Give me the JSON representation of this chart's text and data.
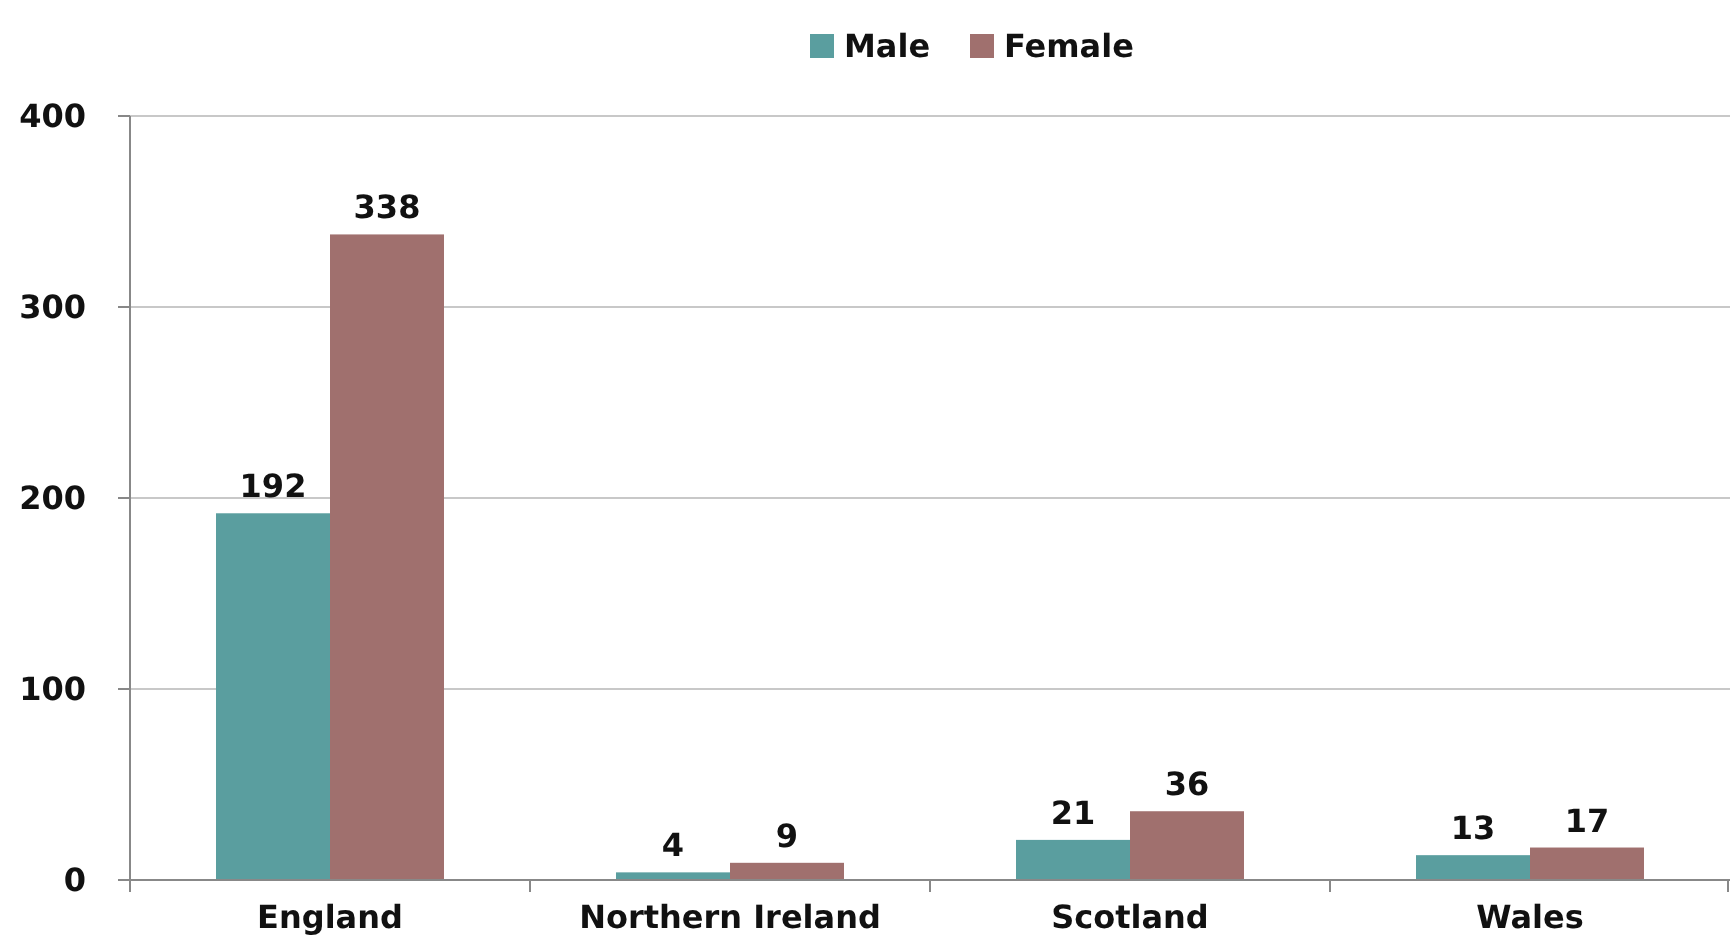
{
  "chart_data": {
    "type": "bar",
    "categories": [
      "England",
      "Northern Ireland",
      "Scotland",
      "Wales"
    ],
    "series": [
      {
        "name": "Male",
        "color": "#5a9e9f",
        "values": [
          192,
          4,
          21,
          13
        ]
      },
      {
        "name": "Female",
        "color": "#a0706e",
        "values": [
          338,
          9,
          36,
          17
        ]
      }
    ],
    "ylim": [
      0,
      400
    ],
    "yticks": [
      0,
      100,
      200,
      300,
      400
    ],
    "grid": "y",
    "legend": "top",
    "data_labels": true
  }
}
